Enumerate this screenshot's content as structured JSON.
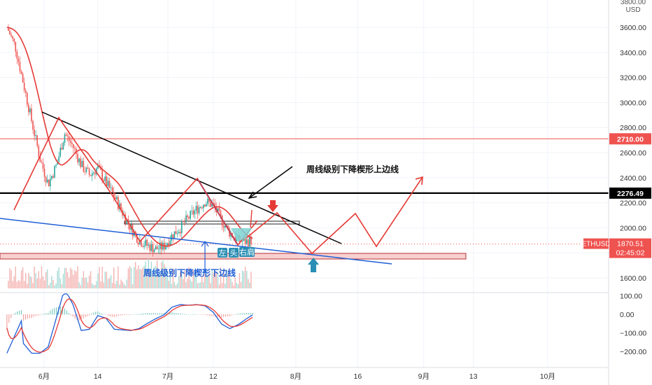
{
  "chart_data": {
    "type": "candlestick",
    "symbol": "ETHUSD",
    "currency": "USD",
    "price_axis_ticks": [
      1600,
      1800,
      2000,
      2200,
      2400,
      2600,
      2800,
      3000,
      3200,
      3400,
      3600
    ],
    "price_axis_top_label": "3800.00",
    "ylim": [
      1460,
      3850
    ],
    "osc_axis_ticks": [
      100,
      0,
      -100,
      -200
    ],
    "osc_ylim": [
      -260,
      145
    ],
    "time_axis_labels": [
      {
        "label": "6月",
        "day": 0
      },
      {
        "label": "14",
        "day": 13
      },
      {
        "label": "7月",
        "day": 30
      },
      {
        "label": "12",
        "day": 41
      },
      {
        "label": "8月",
        "day": 61
      },
      {
        "label": "16",
        "day": 76
      },
      {
        "label": "9月",
        "day": 92
      },
      {
        "label": "13",
        "day": 104
      },
      {
        "label": "10月",
        "day": 122
      }
    ],
    "last_price": {
      "label": "ETHUSD",
      "value": "1870.51",
      "countdown": "02:45:02",
      "y": 1870.51,
      "color": "#ef5350"
    },
    "levels": [
      {
        "value": "2710.00",
        "y": 2710,
        "color": "#ef5350"
      },
      {
        "value": "2276.49",
        "y": 2276.49,
        "color": "#000000"
      }
    ],
    "annotations": {
      "upper_line": "周线级别下降楔形上边线",
      "lower_line": "周线级别下降楔形下边线",
      "left_shoulder": "左",
      "head": "头",
      "right_shoulder": "右肩"
    },
    "price_series": [
      [
        -9,
        3600
      ],
      [
        -7,
        3450
      ],
      [
        -5,
        3150
      ],
      [
        -3,
        2850
      ],
      [
        -1,
        2550
      ],
      [
        1,
        2350
      ],
      [
        3,
        2500
      ],
      [
        5,
        2750
      ],
      [
        7,
        2650
      ],
      [
        9,
        2500
      ],
      [
        11,
        2420
      ],
      [
        13,
        2480
      ],
      [
        15,
        2360
      ],
      [
        17,
        2250
      ],
      [
        19,
        2120
      ],
      [
        21,
        2000
      ],
      [
        23,
        1900
      ],
      [
        25,
        1860
      ],
      [
        27,
        1830
      ],
      [
        29,
        1850
      ],
      [
        31,
        1940
      ],
      [
        33,
        2000
      ],
      [
        35,
        2080
      ],
      [
        37,
        2150
      ],
      [
        39,
        2210
      ],
      [
        41,
        2180
      ],
      [
        43,
        2060
      ],
      [
        45,
        1960
      ],
      [
        47,
        1900
      ],
      [
        49,
        1890
      ],
      [
        50.5,
        1905
      ]
    ],
    "colors": {
      "up": "#26a69a",
      "down": "#ef5350",
      "ma": "#e53935",
      "zigzag": "#e53935",
      "trend_upper": "#000000",
      "trend_lower": "#1f5fd6",
      "macd": "#1f5fd6",
      "signal": "#e53935",
      "zone": "#ef5350",
      "hs_fill": "#7fd3d3"
    }
  }
}
